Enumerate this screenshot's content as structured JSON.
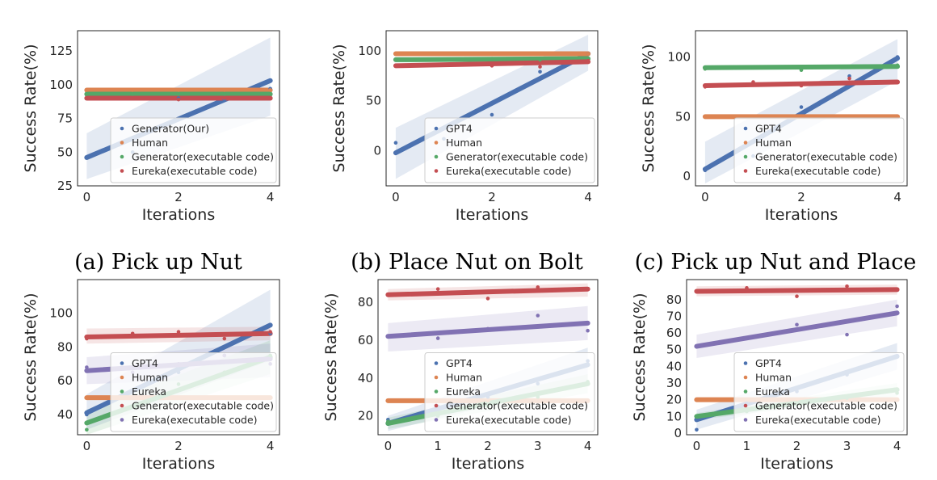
{
  "colors": {
    "blue": "#4c72b0",
    "orange": "#dd8452",
    "green": "#55a868",
    "red": "#c44e52",
    "purple": "#8172b3"
  },
  "captions": [
    "(a) Pick up Nut",
    "(b) Place Nut on Bolt",
    "(c) Pick up Nut and Place"
  ],
  "chart_data": [
    {
      "type": "scatter",
      "xlabel": "Iterations",
      "ylabel": "Success Rate(%)",
      "xlim": [
        -0.2,
        4.2
      ],
      "ylim": [
        25,
        140
      ],
      "xticks": [
        0,
        2,
        4
      ],
      "yticks": [
        25,
        50,
        75,
        100,
        125
      ],
      "legend": "bottom-right",
      "series": [
        {
          "name": "Generator(Our)",
          "color": "#4c72b0",
          "x": [
            0,
            1,
            2,
            3,
            4
          ],
          "y": [
            46,
            50,
            90,
            89,
            97
          ],
          "fit": [
            46,
            103
          ],
          "band_low": [
            30,
            77
          ],
          "band_high": [
            64,
            135
          ]
        },
        {
          "name": "Human",
          "color": "#dd8452",
          "x": [
            0,
            1,
            2,
            3,
            4
          ],
          "y": [
            96,
            96,
            96,
            96,
            96
          ],
          "fit": [
            96,
            96
          ]
        },
        {
          "name": "Generator(executable code)",
          "color": "#55a868",
          "x": [
            0,
            1,
            2,
            3,
            4
          ],
          "y": [
            93,
            93,
            93,
            93,
            93
          ],
          "fit": [
            93,
            93
          ]
        },
        {
          "name": "Eureka(executable code)",
          "color": "#c44e52",
          "x": [
            0,
            1,
            2,
            3,
            4
          ],
          "y": [
            90,
            90,
            89,
            90,
            90
          ],
          "fit": [
            90,
            90
          ]
        }
      ]
    },
    {
      "type": "scatter",
      "xlabel": "Iterations",
      "ylabel": "Success Rate(%)",
      "xlim": [
        -0.2,
        4.2
      ],
      "ylim": [
        -35,
        120
      ],
      "xticks": [
        0,
        2,
        4
      ],
      "yticks": [
        0,
        50,
        100
      ],
      "legend": "bottom-right",
      "series": [
        {
          "name": "GPT4",
          "color": "#4c72b0",
          "x": [
            0,
            1,
            2,
            3,
            4
          ],
          "y": [
            8,
            12,
            36,
            79,
            97
          ],
          "fit": [
            -2,
            97
          ],
          "band_low": [
            -28,
            80
          ],
          "band_high": [
            23,
            116
          ]
        },
        {
          "name": "Human",
          "color": "#dd8452",
          "x": [
            0,
            1,
            2,
            3,
            4
          ],
          "y": [
            97,
            97,
            97,
            97,
            97
          ],
          "fit": [
            97,
            97
          ]
        },
        {
          "name": "Generator(executable code)",
          "color": "#55a868",
          "x": [
            0,
            1,
            2,
            3,
            4
          ],
          "y": [
            91,
            91,
            92,
            91,
            92
          ],
          "fit": [
            91,
            92
          ]
        },
        {
          "name": "Eureka(executable code)",
          "color": "#c44e52",
          "x": [
            0,
            1,
            2,
            3,
            4
          ],
          "y": [
            85,
            86,
            85,
            84,
            90
          ],
          "fit": [
            85,
            89
          ]
        }
      ]
    },
    {
      "type": "scatter",
      "xlabel": "Iterations",
      "ylabel": "Success Rate(%)",
      "xlim": [
        -0.2,
        4.2
      ],
      "ylim": [
        -8,
        122
      ],
      "xticks": [
        0,
        2,
        4
      ],
      "yticks": [
        0,
        50,
        100
      ],
      "legend": "bottom-right",
      "series": [
        {
          "name": "GPT4",
          "color": "#4c72b0",
          "x": [
            0,
            1,
            2,
            3,
            4
          ],
          "y": [
            5,
            17,
            58,
            84,
            100
          ],
          "fit": [
            6,
            99
          ],
          "band_low": [
            -6,
            80
          ],
          "band_high": [
            29,
            115
          ]
        },
        {
          "name": "Human",
          "color": "#dd8452",
          "x": [
            0,
            1,
            2,
            3,
            4
          ],
          "y": [
            50,
            50,
            50,
            50,
            50
          ],
          "fit": [
            50,
            50
          ]
        },
        {
          "name": "Generator(executable code)",
          "color": "#55a868",
          "x": [
            0,
            1,
            2,
            3,
            4
          ],
          "y": [
            90,
            91,
            89,
            92,
            93
          ],
          "fit": [
            91,
            92
          ]
        },
        {
          "name": "Eureka(executable code)",
          "color": "#c44e52",
          "x": [
            0,
            1,
            2,
            3,
            4
          ],
          "y": [
            75,
            79,
            76,
            82,
            79
          ],
          "fit": [
            76,
            79
          ]
        }
      ]
    },
    {
      "type": "scatter",
      "xlabel": "Iterations",
      "ylabel": "Success Rate(%)",
      "xlim": [
        -0.2,
        4.2
      ],
      "ylim": [
        28,
        120
      ],
      "xticks": [
        0,
        2,
        4
      ],
      "yticks": [
        40,
        60,
        80,
        100
      ],
      "legend": "bottom-right",
      "series": [
        {
          "name": "GPT4",
          "color": "#4c72b0",
          "x": [
            0,
            1,
            2,
            3,
            4
          ],
          "y": [
            40,
            50,
            65,
            75,
            88
          ],
          "fit": [
            41,
            93
          ],
          "band_low": [
            31,
            72
          ],
          "band_high": [
            52,
            114
          ]
        },
        {
          "name": "Human",
          "color": "#dd8452",
          "x": [
            0,
            1,
            2,
            3,
            4
          ],
          "y": [
            50,
            50,
            50,
            50,
            50
          ],
          "fit": [
            50,
            50
          ]
        },
        {
          "name": "Eureka",
          "color": "#55a868",
          "x": [
            0,
            1,
            2,
            3,
            4
          ],
          "y": [
            31,
            45,
            58,
            65,
            75
          ],
          "fit": [
            35,
            74
          ],
          "band_low": [
            28,
            64
          ],
          "band_high": [
            43,
            84
          ]
        },
        {
          "name": "Generator(executable code)",
          "color": "#c44e52",
          "x": [
            0,
            1,
            2,
            3,
            4
          ],
          "y": [
            85,
            88,
            89,
            85,
            89
          ],
          "fit": [
            86,
            88
          ],
          "band_low": [
            82,
            84
          ],
          "band_high": [
            91,
            92
          ]
        },
        {
          "name": "Eureka(executable code)",
          "color": "#8172b3",
          "x": [
            0,
            1,
            2,
            3,
            4
          ],
          "y": [
            68,
            65,
            70,
            75,
            70
          ],
          "fit": [
            66,
            73
          ],
          "band_low": [
            58,
            62
          ],
          "band_high": [
            74,
            82
          ]
        }
      ]
    },
    {
      "type": "scatter",
      "xlabel": "Iterations",
      "ylabel": "Success Rate(%)",
      "xlim": [
        -0.2,
        4.2
      ],
      "ylim": [
        10,
        92
      ],
      "xticks": [
        0,
        1,
        2,
        3,
        4
      ],
      "yticks": [
        20,
        40,
        60,
        80
      ],
      "legend": "bottom-right",
      "series": [
        {
          "name": "GPT4",
          "color": "#4c72b0",
          "x": [
            0,
            1,
            2,
            3,
            4
          ],
          "y": [
            18,
            25,
            30,
            37,
            49
          ],
          "fit": [
            16,
            47
          ],
          "band_low": [
            12,
            38
          ],
          "band_high": [
            20,
            56
          ]
        },
        {
          "name": "Human",
          "color": "#dd8452",
          "x": [
            0,
            1,
            2,
            3,
            4
          ],
          "y": [
            28,
            28,
            28,
            28,
            28
          ],
          "fit": [
            28,
            28
          ]
        },
        {
          "name": "Eureka",
          "color": "#55a868",
          "x": [
            0,
            1,
            2,
            3,
            4
          ],
          "y": [
            17,
            20,
            25,
            30,
            38
          ],
          "fit": [
            16,
            37
          ],
          "band_low": [
            13,
            32
          ],
          "band_high": [
            19,
            42
          ]
        },
        {
          "name": "Generator(executable code)",
          "color": "#c44e52",
          "x": [
            0,
            1,
            2,
            3,
            4
          ],
          "y": [
            84,
            87,
            82,
            88,
            87
          ],
          "fit": [
            84,
            87
          ],
          "band_low": [
            81,
            83
          ],
          "band_high": [
            87,
            90
          ]
        },
        {
          "name": "Eureka(executable code)",
          "color": "#8172b3",
          "x": [
            0,
            1,
            2,
            3,
            4
          ],
          "y": [
            62,
            61,
            66,
            73,
            65
          ],
          "fit": [
            62,
            69
          ],
          "band_low": [
            54,
            60
          ],
          "band_high": [
            69,
            78
          ]
        }
      ]
    },
    {
      "type": "scatter",
      "xlabel": "Iterations",
      "ylabel": "Success Rate(%)",
      "xlim": [
        -0.2,
        4.2
      ],
      "ylim": [
        -1,
        92
      ],
      "xticks": [
        0,
        1,
        2,
        3,
        4
      ],
      "yticks": [
        0,
        10,
        20,
        30,
        40,
        50,
        60,
        70,
        80
      ],
      "legend": "bottom-right",
      "series": [
        {
          "name": "GPT4",
          "color": "#4c72b0",
          "x": [
            0,
            1,
            2,
            3,
            4
          ],
          "y": [
            2,
            18,
            25,
            35,
            46
          ],
          "fit": [
            8,
            46
          ],
          "band_low": [
            2,
            38
          ],
          "band_high": [
            14,
            54
          ]
        },
        {
          "name": "Human",
          "color": "#dd8452",
          "x": [
            0,
            1,
            2,
            3,
            4
          ],
          "y": [
            20,
            20,
            20,
            20,
            20
          ],
          "fit": [
            20,
            20
          ]
        },
        {
          "name": "Eureka",
          "color": "#55a868",
          "x": [
            0,
            1,
            2,
            3,
            4
          ],
          "y": [
            10,
            13,
            18,
            21,
            24
          ],
          "fit": [
            10,
            26
          ],
          "band_low": [
            8,
            22
          ],
          "band_high": [
            12,
            30
          ]
        },
        {
          "name": "Generator(executable code)",
          "color": "#c44e52",
          "x": [
            0,
            1,
            2,
            3,
            4
          ],
          "y": [
            85,
            87,
            82,
            88,
            86
          ],
          "fit": [
            85,
            86
          ],
          "band_low": [
            82,
            83
          ],
          "band_high": [
            88,
            89
          ]
        },
        {
          "name": "Eureka(executable code)",
          "color": "#8172b3",
          "x": [
            0,
            1,
            2,
            3,
            4
          ],
          "y": [
            52,
            57,
            65,
            59,
            76
          ],
          "fit": [
            52,
            72
          ],
          "band_low": [
            45,
            64
          ],
          "band_high": [
            59,
            80
          ]
        }
      ]
    }
  ]
}
